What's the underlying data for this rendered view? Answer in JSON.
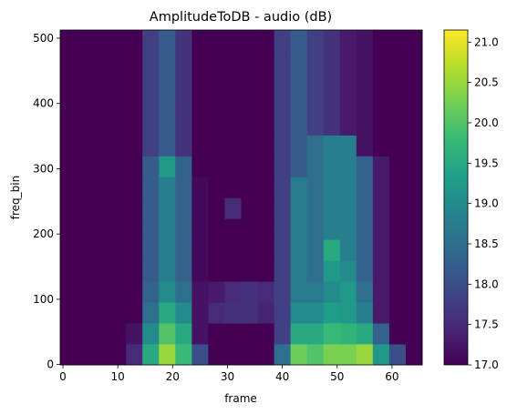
{
  "chart_data": {
    "type": "heatmap",
    "title": "AmplitudeToDB - audio (dB)",
    "xlabel": "frame",
    "ylabel": "freq_bin",
    "xbins": [
      -0.5,
      2.5,
      5.5,
      8.5,
      11.5,
      14.5,
      17.5,
      20.5,
      23.5,
      26.5,
      29.5,
      32.5,
      35.5,
      38.5,
      41.5,
      44.5,
      47.5,
      50.5,
      53.5,
      56.5,
      59.5,
      62.5,
      65.5
    ],
    "ybins": [
      -0.5,
      31.5,
      63.5,
      95.5,
      127.5,
      159.5,
      191.5,
      223.5,
      255.5,
      287.5,
      319.5,
      351.5,
      383.5,
      415.5,
      447.5,
      479.5,
      512.5
    ],
    "z": [
      [
        17,
        17,
        17,
        17,
        17.5,
        19.5,
        20.5,
        19.8,
        18.0,
        17,
        17,
        17,
        17,
        18.5,
        20.2,
        20.0,
        20.3,
        20.3,
        20.5,
        19.2,
        18.0,
        17
      ],
      [
        17,
        17,
        17,
        17,
        17.2,
        19.0,
        20.0,
        19.5,
        17.2,
        17,
        17,
        17,
        17,
        17.8,
        19.5,
        19.5,
        19.8,
        19.7,
        19.5,
        18.3,
        17,
        17
      ],
      [
        17,
        17,
        17,
        17,
        17,
        18.5,
        19.5,
        19.0,
        17.2,
        17.5,
        17.6,
        17.6,
        17.4,
        17.8,
        19.0,
        19.0,
        19.3,
        19.2,
        18.8,
        17.3,
        17,
        17
      ],
      [
        17,
        17,
        17,
        17,
        17,
        18.3,
        19.0,
        18.5,
        17.2,
        17.3,
        17.5,
        17.6,
        17.5,
        17.8,
        18.7,
        18.7,
        19.0,
        19.2,
        18.5,
        17.3,
        17,
        17
      ],
      [
        17,
        17,
        17,
        17,
        17,
        18.2,
        18.8,
        18.3,
        17.1,
        17,
        17,
        17,
        17,
        17.8,
        18.7,
        18.5,
        19.2,
        19.0,
        18.3,
        17.3,
        17,
        17
      ],
      [
        17,
        17,
        17,
        17,
        17,
        18.2,
        18.8,
        18.3,
        17.1,
        17,
        17,
        17,
        17,
        17.8,
        18.7,
        18.5,
        19.5,
        18.8,
        18.3,
        17.3,
        17,
        17
      ],
      [
        17,
        17,
        17,
        17,
        17,
        18.2,
        18.8,
        18.3,
        17.1,
        17,
        17,
        17,
        17,
        17.8,
        18.7,
        18.5,
        18.8,
        18.8,
        18.3,
        17.3,
        17,
        17
      ],
      [
        17,
        17,
        17,
        17,
        17,
        18.2,
        18.8,
        18.3,
        17.1,
        17,
        17.5,
        17,
        17,
        17.8,
        18.7,
        18.5,
        18.8,
        18.8,
        18.3,
        17.3,
        17,
        17
      ],
      [
        17,
        17,
        17,
        17,
        17,
        18.2,
        18.8,
        18.3,
        17.1,
        17,
        17,
        17,
        17,
        17.8,
        18.7,
        18.5,
        18.8,
        18.8,
        18.3,
        17.3,
        17,
        17
      ],
      [
        17,
        17,
        17,
        17,
        17,
        18.2,
        19.2,
        18.3,
        17,
        17,
        17,
        17,
        17,
        17.8,
        18.2,
        18.5,
        18.8,
        18.8,
        18.3,
        17.3,
        17,
        17
      ],
      [
        17,
        17,
        17,
        17,
        17,
        17.8,
        18.2,
        17.6,
        17,
        17,
        17,
        17,
        17,
        17.8,
        18.2,
        18.5,
        18.8,
        18.8,
        17.2,
        17,
        17,
        17
      ],
      [
        17,
        17,
        17,
        17,
        17,
        17.8,
        18.2,
        17.6,
        17,
        17,
        17,
        17,
        17,
        17.8,
        18.2,
        17.8,
        17.6,
        17.3,
        17.2,
        17,
        17,
        17
      ],
      [
        17,
        17,
        17,
        17,
        17,
        17.8,
        18.2,
        17.6,
        17,
        17,
        17,
        17,
        17,
        17.8,
        18.2,
        17.8,
        17.6,
        17.3,
        17.2,
        17,
        17,
        17
      ],
      [
        17,
        17,
        17,
        17,
        17,
        17.8,
        18.2,
        17.6,
        17,
        17,
        17,
        17,
        17,
        17.8,
        18.2,
        17.8,
        17.6,
        17.3,
        17.2,
        17,
        17,
        17
      ],
      [
        17,
        17,
        17,
        17,
        17,
        17.8,
        18.2,
        17.6,
        17,
        17,
        17,
        17,
        17,
        17.8,
        18.2,
        17.8,
        17.6,
        17.3,
        17.2,
        17,
        17,
        17
      ],
      [
        17,
        17,
        17,
        17,
        17,
        17.8,
        18.2,
        17.6,
        17,
        17,
        17,
        17,
        17,
        17.8,
        18.2,
        17.8,
        17.6,
        17.3,
        17.2,
        17,
        17,
        17
      ]
    ],
    "xlim": [
      -0.5,
      65.5
    ],
    "ylim": [
      -0.5,
      512.5
    ],
    "xticks": [
      0,
      10,
      20,
      30,
      40,
      50,
      60
    ],
    "yticks": [
      0,
      100,
      200,
      300,
      400,
      500
    ],
    "cmap": [
      "#440154",
      "#482878",
      "#3e4989",
      "#31688e",
      "#26828e",
      "#1f9e89",
      "#35b779",
      "#6ece58",
      "#b5de2b",
      "#fde725"
    ],
    "clim": [
      17.0,
      21.15
    ],
    "cticks": [
      {
        "value": 17,
        "label": "17.0"
      },
      {
        "value": 17.5,
        "label": "17.5"
      },
      {
        "value": 18,
        "label": "18.0"
      },
      {
        "value": 18.5,
        "label": "18.5"
      },
      {
        "value": 19,
        "label": "19.0"
      },
      {
        "value": 19.5,
        "label": "19.5"
      },
      {
        "value": 20,
        "label": "20.0"
      },
      {
        "value": 20.5,
        "label": "20.5"
      },
      {
        "value": 21,
        "label": "21.0"
      }
    ]
  }
}
